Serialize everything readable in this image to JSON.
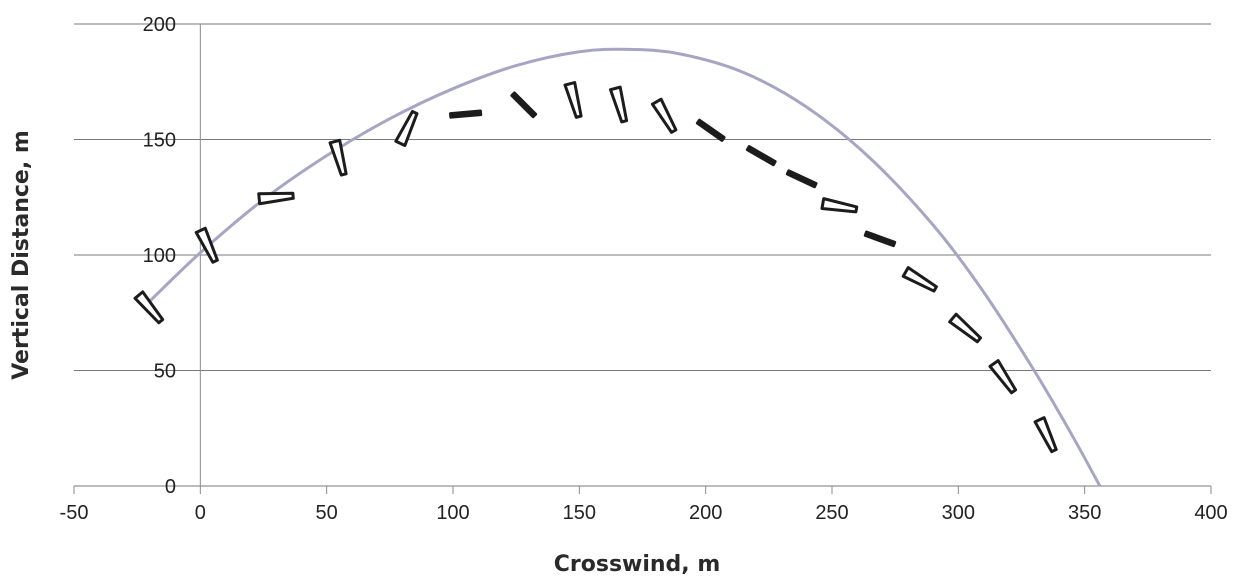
{
  "chart_data": {
    "type": "scatter",
    "xlabel": "Crosswind, m",
    "ylabel": "Vertical Distance, m",
    "xlim": [
      -50,
      400
    ],
    "ylim": [
      0,
      200
    ],
    "x_ticks": [
      "-50",
      "0",
      "50",
      "100",
      "150",
      "200",
      "250",
      "300",
      "350",
      "400"
    ],
    "y_ticks": [
      "0",
      "50",
      "100",
      "150",
      "200"
    ],
    "grid": "horizontal",
    "legend": "none",
    "series": [
      {
        "kind": "curve",
        "color": "#a6a6c4",
        "x": [
          -20,
          0,
          25,
          50,
          75,
          100,
          125,
          150,
          170,
          190,
          215,
          240,
          265,
          290,
          310,
          330,
          345,
          356
        ],
        "y": [
          80,
          101,
          124,
          143,
          159,
          172,
          182,
          188,
          189,
          187,
          179,
          164,
          142,
          113,
          84,
          50,
          22,
          0
        ]
      },
      {
        "kind": "markers",
        "color": "#1c1c1c",
        "points": [
          {
            "x": -20,
            "y": 77,
            "angle": 50,
            "shape": "wedge"
          },
          {
            "x": 3,
            "y": 104,
            "angle": 65,
            "shape": "wedge"
          },
          {
            "x": 30,
            "y": 125,
            "angle": -5,
            "shape": "wedge"
          },
          {
            "x": 55,
            "y": 142,
            "angle": 75,
            "shape": "wedge"
          },
          {
            "x": 82,
            "y": 155,
            "angle": -65,
            "shape": "wedge"
          },
          {
            "x": 105,
            "y": 161,
            "angle": -5,
            "shape": "dash"
          },
          {
            "x": 128,
            "y": 165,
            "angle": 45,
            "shape": "dash"
          },
          {
            "x": 148,
            "y": 167,
            "angle": 75,
            "shape": "wedge"
          },
          {
            "x": 166,
            "y": 165,
            "angle": 75,
            "shape": "wedge"
          },
          {
            "x": 184,
            "y": 160,
            "angle": 60,
            "shape": "wedge"
          },
          {
            "x": 202,
            "y": 154,
            "angle": 35,
            "shape": "dash"
          },
          {
            "x": 222,
            "y": 143,
            "angle": 30,
            "shape": "dash"
          },
          {
            "x": 238,
            "y": 133,
            "angle": 25,
            "shape": "dash"
          },
          {
            "x": 253,
            "y": 121,
            "angle": 10,
            "shape": "wedge"
          },
          {
            "x": 269,
            "y": 107,
            "angle": 20,
            "shape": "dash"
          },
          {
            "x": 285,
            "y": 89,
            "angle": 30,
            "shape": "wedge"
          },
          {
            "x": 303,
            "y": 68,
            "angle": 40,
            "shape": "wedge"
          },
          {
            "x": 318,
            "y": 47,
            "angle": 55,
            "shape": "wedge"
          },
          {
            "x": 335,
            "y": 22,
            "angle": 65,
            "shape": "wedge"
          }
        ]
      }
    ]
  }
}
